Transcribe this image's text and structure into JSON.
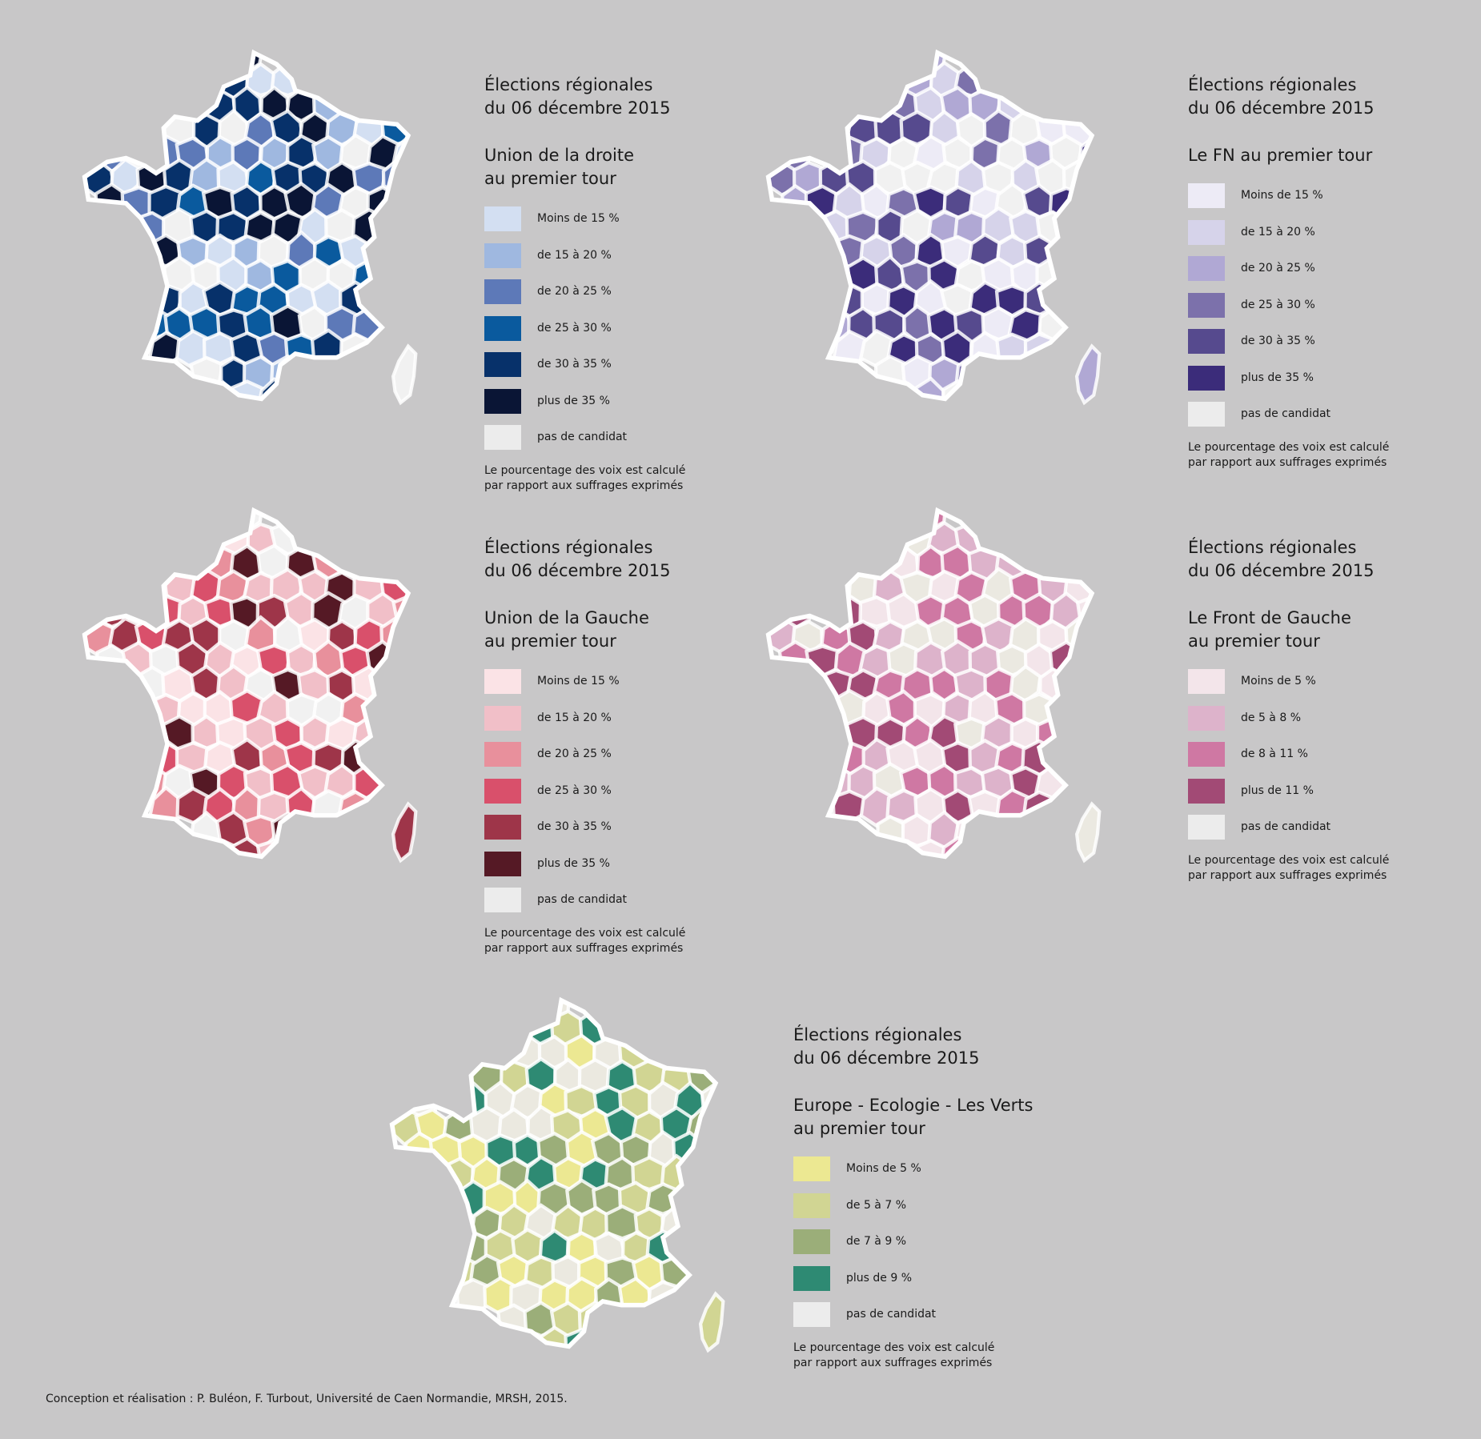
{
  "maps": [
    {
      "id": "droite",
      "title_line1": "Élections régionales",
      "title_line2": "du 06 décembre 2015",
      "subtitle_line1": "Union de la droite",
      "subtitle_line2": "au premier tour",
      "note_line1": "Le pourcentage des voix est calculé",
      "note_line2": "par rapport aux suffrages exprimés",
      "palette": [
        "#d3dff2",
        "#9fb8e0",
        "#5d79b8",
        "#0a5a9e",
        "#07316a",
        "#0a1535",
        "#f1f1f1"
      ],
      "legend": [
        {
          "label": "Moins de 15 %",
          "color": "#d3dff2"
        },
        {
          "label": "de 15 à 20 %",
          "color": "#9fb8e0"
        },
        {
          "label": "de 20 à 25 %",
          "color": "#5d79b8"
        },
        {
          "label": "de 25 à 30 %",
          "color": "#0a5a9e"
        },
        {
          "label": "de 30 à 35 %",
          "color": "#07316a"
        },
        {
          "label": "plus de 35 %",
          "color": "#0a1535"
        },
        {
          "label": "pas de candidat",
          "color": "#ececec"
        }
      ]
    },
    {
      "id": "fn",
      "title_line1": "Élections régionales",
      "title_line2": "du 06 décembre 2015",
      "subtitle_line1": "Le FN au premier tour",
      "subtitle_line2": "",
      "note_line1": "Le pourcentage des voix est calculé",
      "note_line2": "par rapport aux suffrages exprimés",
      "palette": [
        "#edebf6",
        "#d6d3ea",
        "#b0a8d4",
        "#7c71ab",
        "#564a8e",
        "#3b2c7a",
        "#f1f1f1"
      ],
      "legend": [
        {
          "label": "Moins de 15 %",
          "color": "#edebf6"
        },
        {
          "label": "de 15 à 20 %",
          "color": "#d6d3ea"
        },
        {
          "label": "de 20 à 25 %",
          "color": "#b0a8d4"
        },
        {
          "label": "de 25 à 30 %",
          "color": "#7c71ab"
        },
        {
          "label": "de 30 à 35 %",
          "color": "#564a8e"
        },
        {
          "label": "plus de 35 %",
          "color": "#3b2c7a"
        },
        {
          "label": "pas de candidat",
          "color": "#ececec"
        }
      ]
    },
    {
      "id": "gauche",
      "title_line1": "Élections régionales",
      "title_line2": "du 06 décembre 2015",
      "subtitle_line1": "Union de la Gauche",
      "subtitle_line2": "au premier tour",
      "note_line1": "Le pourcentage des voix est calculé",
      "note_line2": "par rapport aux suffrages exprimés",
      "palette": [
        "#fbe3e6",
        "#f1bfc8",
        "#e8909c",
        "#d9506b",
        "#9e3549",
        "#551925",
        "#f1f1f1"
      ],
      "legend": [
        {
          "label": "Moins de 15 %",
          "color": "#fbe3e6"
        },
        {
          "label": "de 15 à 20 %",
          "color": "#f1bfc8"
        },
        {
          "label": "de 20 à 25 %",
          "color": "#e8909c"
        },
        {
          "label": "de 25 à 30 %",
          "color": "#d9506b"
        },
        {
          "label": "de 30 à 35 %",
          "color": "#9e3549"
        },
        {
          "label": "plus de 35 %",
          "color": "#551925"
        },
        {
          "label": "pas de candidat",
          "color": "#ececec"
        }
      ]
    },
    {
      "id": "fdg",
      "title_line1": "Élections régionales",
      "title_line2": "du 06 décembre 2015",
      "subtitle_line1": "Le Front de Gauche",
      "subtitle_line2": " au premier tour",
      "note_line1": "Le pourcentage des voix est calculé",
      "note_line2": "par rapport aux suffrages exprimés",
      "palette": [
        "#f3e5ea",
        "#ddb3cb",
        "#cf78a3",
        "#a24a75",
        "#ebe9e1"
      ],
      "legend": [
        {
          "label": "Moins de 5 %",
          "color": "#f3e5ea"
        },
        {
          "label": "de 5 à 8 %",
          "color": "#ddb3cb"
        },
        {
          "label": "de 8 à 11 %",
          "color": "#cf78a3"
        },
        {
          "label": "plus de 11 %",
          "color": "#a24a75"
        },
        {
          "label": "pas de candidat",
          "color": "#ececec"
        }
      ]
    },
    {
      "id": "eelv",
      "title_line1": "Élections régionales",
      "title_line2": "du 06 décembre 2015",
      "subtitle_line1": "Europe - Ecologie - Les Verts",
      "subtitle_line2": "au premier tour",
      "note_line1": "Le pourcentage des voix est calculé",
      "note_line2": "par rapport aux suffrages exprimés",
      "palette": [
        "#ece892",
        "#d1d593",
        "#9bae79",
        "#2e8a73",
        "#ebe9e0"
      ],
      "legend": [
        {
          "label": "Moins de 5 %",
          "color": "#ece892"
        },
        {
          "label": "de 5 à 7 %",
          "color": "#d1d593"
        },
        {
          "label": "de 7 à 9 %",
          "color": "#9bae79"
        },
        {
          "label": "plus de 9 %",
          "color": "#2e8a73"
        },
        {
          "label": "pas de candidat",
          "color": "#ececec"
        }
      ]
    }
  ],
  "credit": "Conception et réalisation : P. Buléon, F. Turbout, Université de Caen Normandie, MRSH, 2015."
}
